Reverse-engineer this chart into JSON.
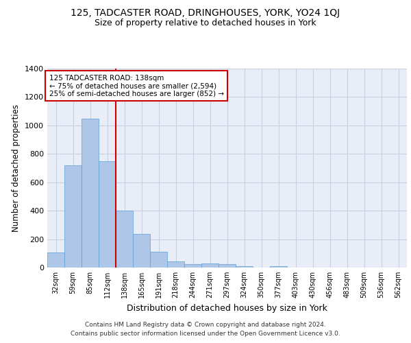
{
  "title1": "125, TADCASTER ROAD, DRINGHOUSES, YORK, YO24 1QJ",
  "title2": "Size of property relative to detached houses in York",
  "xlabel": "Distribution of detached houses by size in York",
  "ylabel": "Number of detached properties",
  "categories": [
    "32sqm",
    "59sqm",
    "85sqm",
    "112sqm",
    "138sqm",
    "165sqm",
    "191sqm",
    "218sqm",
    "244sqm",
    "271sqm",
    "297sqm",
    "324sqm",
    "350sqm",
    "377sqm",
    "403sqm",
    "430sqm",
    "456sqm",
    "483sqm",
    "509sqm",
    "536sqm",
    "562sqm"
  ],
  "values": [
    105,
    720,
    1050,
    750,
    400,
    235,
    110,
    45,
    25,
    28,
    22,
    12,
    0,
    12,
    0,
    0,
    0,
    0,
    0,
    0,
    0
  ],
  "bar_color": "#aec6e8",
  "bar_edge_color": "#5a9fd4",
  "highlight_label": "125 TADCASTER ROAD: 138sqm",
  "annotation_line1": "← 75% of detached houses are smaller (2,594)",
  "annotation_line2": "25% of semi-detached houses are larger (852) →",
  "vline_color": "#cc0000",
  "vline_x_index": 4,
  "ylim": [
    0,
    1400
  ],
  "yticks": [
    0,
    200,
    400,
    600,
    800,
    1000,
    1200,
    1400
  ],
  "footnote_line1": "Contains HM Land Registry data © Crown copyright and database right 2024.",
  "footnote_line2": "Contains public sector information licensed under the Open Government Licence v3.0.",
  "bg_color": "#ffffff",
  "plot_bg_color": "#e8edf8",
  "grid_color": "#c8cfe0"
}
